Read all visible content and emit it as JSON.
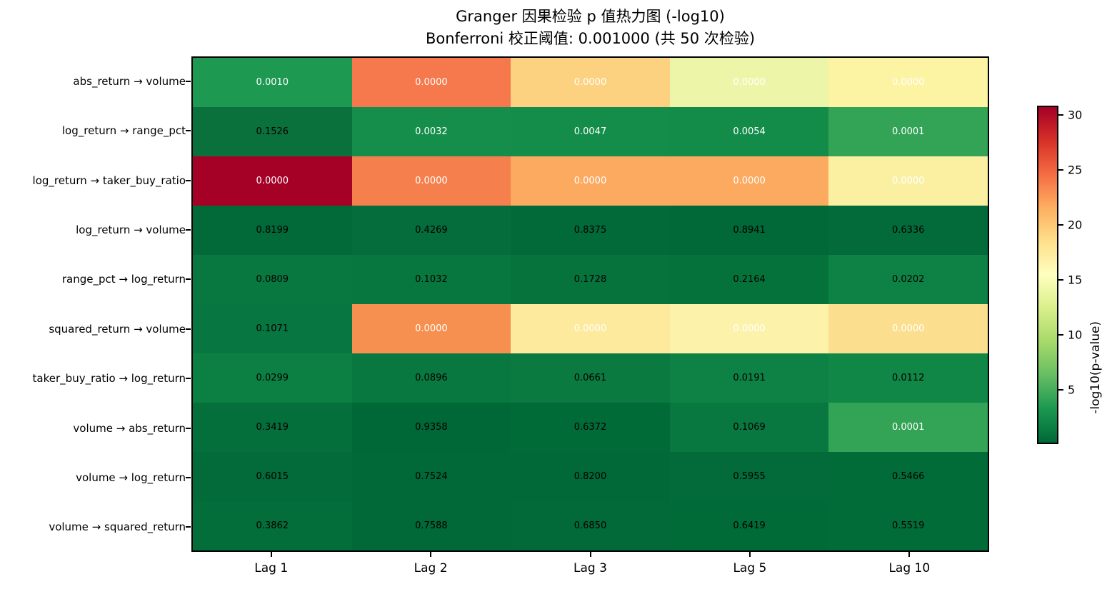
{
  "figure": {
    "title": "Granger 因果检验 p 值热力图 (-log10)",
    "subtitle": "Bonferroni 校正阈值: 0.001000 (共 50 次检验)"
  },
  "chart_data": {
    "type": "heatmap",
    "title": "Granger 因果检验 p 值热力图 (-log10)",
    "subtitle": "Bonferroni 校正阈值: 0.001000 (共 50 次检验)",
    "x_tick_labels": [
      "Lag 1",
      "Lag 2",
      "Lag 3",
      "Lag 5",
      "Lag 10"
    ],
    "y_tick_labels": [
      "abs_return → volume",
      "log_return → range_pct",
      "log_return → taker_buy_ratio",
      "log_return → volume",
      "range_pct → log_return",
      "squared_return → volume",
      "taker_buy_ratio → log_return",
      "volume → abs_return",
      "volume → log_return",
      "volume → squared_return"
    ],
    "cells": [
      [
        {
          "label": "0.0010",
          "bg": "#1d9951",
          "fg": "#ffffff"
        },
        {
          "label": "0.0000",
          "bg": "#f5794d",
          "fg": "#ffffff"
        },
        {
          "label": "0.0000",
          "bg": "#fcd180",
          "fg": "#ffffff"
        },
        {
          "label": "0.0000",
          "bg": "#edf6a8",
          "fg": "#ffffff"
        },
        {
          "label": "0.0000",
          "bg": "#fcf3a3",
          "fg": "#ffffff"
        }
      ],
      [
        {
          "label": "0.1526",
          "bg": "#0b713c",
          "fg": "#000000"
        },
        {
          "label": "0.0032",
          "bg": "#158e4b",
          "fg": "#ffffff"
        },
        {
          "label": "0.0047",
          "bg": "#148c4a",
          "fg": "#ffffff"
        },
        {
          "label": "0.0054",
          "bg": "#138b49",
          "fg": "#ffffff"
        },
        {
          "label": "0.0001",
          "bg": "#33a356",
          "fg": "#ffffff"
        }
      ],
      [
        {
          "label": "0.0000",
          "bg": "#a50026",
          "fg": "#ffffff"
        },
        {
          "label": "0.0000",
          "bg": "#f5804e",
          "fg": "#ffffff"
        },
        {
          "label": "0.0000",
          "bg": "#fbaa60",
          "fg": "#ffffff"
        },
        {
          "label": "0.0000",
          "bg": "#fbaa60",
          "fg": "#ffffff"
        },
        {
          "label": "0.0000",
          "bg": "#fbf0a2",
          "fg": "#ffffff"
        }
      ],
      [
        {
          "label": "0.8199",
          "bg": "#026938",
          "fg": "#000000"
        },
        {
          "label": "0.4269",
          "bg": "#056c3b",
          "fg": "#000000"
        },
        {
          "label": "0.8375",
          "bg": "#026938",
          "fg": "#000000"
        },
        {
          "label": "0.8941",
          "bg": "#016837",
          "fg": "#000000"
        },
        {
          "label": "0.6336",
          "bg": "#036a39",
          "fg": "#000000"
        }
      ],
      [
        {
          "label": "0.0809",
          "bg": "#097840",
          "fg": "#000000"
        },
        {
          "label": "0.1032",
          "bg": "#08773f",
          "fg": "#000000"
        },
        {
          "label": "0.1728",
          "bg": "#06733d",
          "fg": "#000000"
        },
        {
          "label": "0.2164",
          "bg": "#05723c",
          "fg": "#000000"
        },
        {
          "label": "0.0202",
          "bg": "#0e8244",
          "fg": "#000000"
        }
      ],
      [
        {
          "label": "0.1071",
          "bg": "#087640",
          "fg": "#000000"
        },
        {
          "label": "0.0000",
          "bg": "#f69050",
          "fg": "#ffffff"
        },
        {
          "label": "0.0000",
          "bg": "#fdea9d",
          "fg": "#ffffff"
        },
        {
          "label": "0.0000",
          "bg": "#fdf2a9",
          "fg": "#ffffff"
        },
        {
          "label": "0.0000",
          "bg": "#fcdf8e",
          "fg": "#ffffff"
        }
      ],
      [
        {
          "label": "0.0299",
          "bg": "#0c7f43",
          "fg": "#000000"
        },
        {
          "label": "0.0896",
          "bg": "#097840",
          "fg": "#000000"
        },
        {
          "label": "0.0661",
          "bg": "#0a7a40",
          "fg": "#000000"
        },
        {
          "label": "0.0191",
          "bg": "#0e8244",
          "fg": "#000000"
        },
        {
          "label": "0.0112",
          "bg": "#108647",
          "fg": "#000000"
        }
      ],
      [
        {
          "label": "0.3419",
          "bg": "#046f3b",
          "fg": "#000000"
        },
        {
          "label": "0.9358",
          "bg": "#006837",
          "fg": "#000000"
        },
        {
          "label": "0.6372",
          "bg": "#016b38",
          "fg": "#000000"
        },
        {
          "label": "0.1069",
          "bg": "#087740",
          "fg": "#000000"
        },
        {
          "label": "0.0001",
          "bg": "#33a356",
          "fg": "#ffffff"
        }
      ],
      [
        {
          "label": "0.6015",
          "bg": "#026b39",
          "fg": "#000000"
        },
        {
          "label": "0.7524",
          "bg": "#016938",
          "fg": "#000000"
        },
        {
          "label": "0.8200",
          "bg": "#016938",
          "fg": "#000000"
        },
        {
          "label": "0.5955",
          "bg": "#026b39",
          "fg": "#000000"
        },
        {
          "label": "0.5466",
          "bg": "#026c39",
          "fg": "#000000"
        }
      ],
      [
        {
          "label": "0.3862",
          "bg": "#036e3a",
          "fg": "#000000"
        },
        {
          "label": "0.7588",
          "bg": "#016938",
          "fg": "#000000"
        },
        {
          "label": "0.6850",
          "bg": "#016a38",
          "fg": "#000000"
        },
        {
          "label": "0.6419",
          "bg": "#016b38",
          "fg": "#000000"
        },
        {
          "label": "0.5519",
          "bg": "#026c39",
          "fg": "#000000"
        }
      ]
    ],
    "colorbar": {
      "label": "-log10(p-value)",
      "ticks": [
        5,
        10,
        15,
        20,
        25,
        30
      ],
      "vmin": 0.03,
      "vmax": 30.83,
      "colormap": "RdYlGn_r",
      "gradient_stops_top_to_bottom": [
        "#a50026",
        "#d73027",
        "#f46d43",
        "#fdae61",
        "#fee08b",
        "#ffffbf",
        "#d9ef8b",
        "#a6d96a",
        "#66bd63",
        "#1a9850",
        "#006837"
      ]
    },
    "legend_position": "right-colorbar",
    "grid": false
  }
}
